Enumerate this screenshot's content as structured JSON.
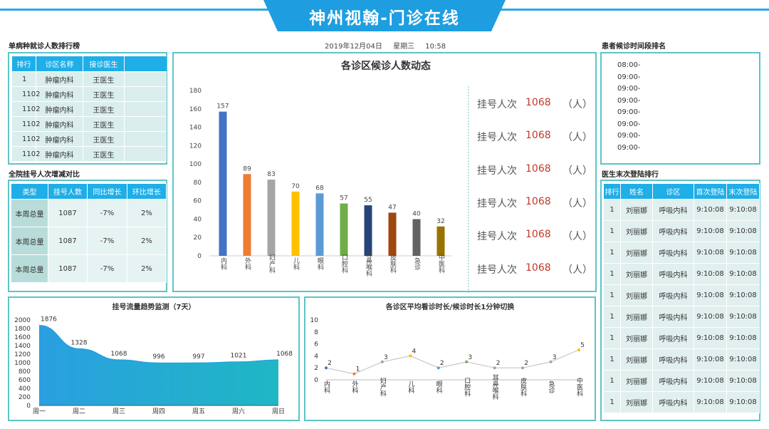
{
  "header": {
    "title": "神州视翰-门诊在线"
  },
  "datetime": {
    "date": "2019年12月04日",
    "weekday": "星期三",
    "time": "10:58"
  },
  "ranking": {
    "title": "单病种就诊人数排行榜",
    "headers": [
      "排行",
      "诊区名称",
      "接诊医生"
    ],
    "rows": [
      [
        "1",
        "肿瘤内科",
        "王医生"
      ],
      [
        "1102",
        "肿瘤内科",
        "王医生"
      ],
      [
        "1102",
        "肿瘤内科",
        "王医生"
      ],
      [
        "1102",
        "肿瘤内科",
        "王医生"
      ],
      [
        "1102",
        "肿瘤内科",
        "王医生"
      ],
      [
        "1102",
        "肿瘤内科",
        "王医生"
      ]
    ]
  },
  "compare": {
    "title": "全院挂号人次增减对比",
    "headers": [
      "类型",
      "挂号人数",
      "同比增长",
      "环比增长"
    ],
    "rows": [
      [
        "本周总量",
        "1087",
        "-7%",
        "2%"
      ],
      [
        "本周总量",
        "1087",
        "-7%",
        "2%"
      ],
      [
        "本周总量",
        "1087",
        "-7%",
        "2%"
      ]
    ]
  },
  "waiting_chart": {
    "chart_data": {
      "type": "bar",
      "title": "各诊区候诊人数动态",
      "categories": [
        "内科",
        "外科",
        "妇产科",
        "儿科",
        "眼科",
        "口腔科",
        "耳鼻喉科",
        "皮肤科",
        "急诊",
        "中医科"
      ],
      "values": [
        157,
        89,
        83,
        70,
        68,
        57,
        55,
        47,
        40,
        32
      ],
      "colors": [
        "#4472c4",
        "#ed7d31",
        "#a5a5a5",
        "#ffc000",
        "#5b9bd5",
        "#70ad47",
        "#264478",
        "#9e480e",
        "#636363",
        "#997300"
      ],
      "ylim": [
        0,
        180
      ],
      "yticks": [
        0,
        20,
        40,
        60,
        80,
        100,
        120,
        140,
        160,
        180
      ],
      "grid": false
    }
  },
  "stats": {
    "label": "挂号人次",
    "unit": "（人）",
    "values": [
      "1068",
      "1068",
      "1068",
      "1068",
      "1068",
      "1068"
    ]
  },
  "wait_time": {
    "title": "患者候诊时间段排名",
    "items": [
      "08:00-",
      "09:00-",
      "09:00-",
      "09:00-",
      "09:00-",
      "09:00-",
      "09:00-",
      "09:00-"
    ]
  },
  "doctors": {
    "title": "医生末次登陆排行",
    "headers": [
      "排行",
      "姓名",
      "诊区",
      "首次登陆",
      "末次登陆"
    ],
    "rows": [
      [
        "1",
        "刘丽娜",
        "呼吸内科",
        "9:10:08",
        "9:10:08"
      ],
      [
        "1",
        "刘丽娜",
        "呼吸内科",
        "9:10:08",
        "9:10:08"
      ],
      [
        "1",
        "刘丽娜",
        "呼吸内科",
        "9:10:08",
        "9:10:08"
      ],
      [
        "1",
        "刘丽娜",
        "呼吸内科",
        "9:10:08",
        "9:10:08"
      ],
      [
        "1",
        "刘丽娜",
        "呼吸内科",
        "9:10:08",
        "9:10:08"
      ],
      [
        "1",
        "刘丽娜",
        "呼吸内科",
        "9:10:08",
        "9:10:08"
      ],
      [
        "1",
        "刘丽娜",
        "呼吸内科",
        "9:10:08",
        "9:10:08"
      ],
      [
        "1",
        "刘丽娜",
        "呼吸内科",
        "9:10:08",
        "9:10:08"
      ],
      [
        "1",
        "刘丽娜",
        "呼吸内科",
        "9:10:08",
        "9:10:08"
      ],
      [
        "1",
        "刘丽娜",
        "呼吸内科",
        "9:10:08",
        "9:10:08"
      ]
    ]
  },
  "trend_chart": {
    "chart_data": {
      "type": "area",
      "title": "挂号流量趋势监测（7天）",
      "categories": [
        "周一",
        "周二",
        "周三",
        "周四",
        "周五",
        "周六",
        "周日"
      ],
      "values": [
        1876,
        1328,
        1068,
        996,
        997,
        1021,
        1068
      ],
      "ylim": [
        0,
        2000
      ],
      "yticks": [
        0,
        200,
        400,
        600,
        800,
        1000,
        1200,
        1400,
        1600,
        1800,
        2000
      ],
      "grid": false
    }
  },
  "avg_chart": {
    "chart_data": {
      "type": "line",
      "title": "各诊区平均看诊时长/候诊时长1分钟切换",
      "categories": [
        "内科",
        "外科",
        "妇产科",
        "儿科",
        "眼科",
        "口腔科",
        "耳鼻喉科",
        "皮肤科",
        "急诊",
        "中医科"
      ],
      "values": [
        2,
        1,
        3,
        4,
        2,
        3,
        2,
        2,
        3,
        5
      ],
      "point_colors": [
        "#4472c4",
        "#ed7d31",
        "#a5a5a5",
        "#ffc000",
        "#5b9bd5",
        "#70ad47",
        "#a5a5a5",
        "#a5a5a5",
        "#a5a5a5",
        "#ffc000"
      ],
      "ylim": [
        0,
        10
      ],
      "yticks": [
        0,
        2,
        4,
        6,
        8,
        10
      ],
      "grid": false
    }
  }
}
